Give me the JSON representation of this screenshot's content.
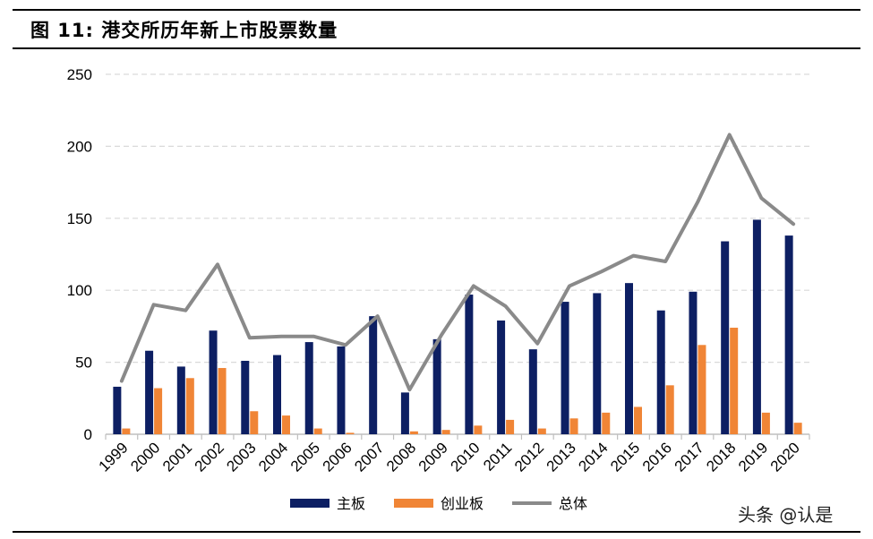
{
  "header": {
    "title": "图 11:  港交所历年新上市股票数量"
  },
  "watermark": "头条 @认是",
  "colors": {
    "main_board": "#0d1f63",
    "gem": "#f08536",
    "total": "#8a8a8a",
    "grid": "#d9d9d9"
  },
  "chart_data": {
    "type": "bar",
    "title": "图 11:  港交所历年新上市股票数量",
    "categories": [
      "1999",
      "2000",
      "2001",
      "2002",
      "2003",
      "2004",
      "2005",
      "2006",
      "2007",
      "2008",
      "2009",
      "2010",
      "2011",
      "2012",
      "2013",
      "2014",
      "2015",
      "2016",
      "2017",
      "2018",
      "2019",
      "2020"
    ],
    "ylim": [
      0,
      250
    ],
    "yticks": [
      0,
      50,
      100,
      150,
      200,
      250
    ],
    "grid": true,
    "legend_position": "bottom",
    "series": [
      {
        "name": "主板",
        "type": "bar",
        "color": "#0d1f63",
        "values": [
          33,
          58,
          47,
          72,
          51,
          55,
          64,
          61,
          82,
          29,
          66,
          97,
          79,
          59,
          92,
          98,
          105,
          86,
          99,
          134,
          149,
          138
        ]
      },
      {
        "name": "创业板",
        "type": "bar",
        "color": "#f08536",
        "values": [
          4,
          32,
          39,
          46,
          16,
          13,
          4,
          1,
          0,
          2,
          3,
          6,
          10,
          4,
          11,
          15,
          19,
          34,
          62,
          74,
          15,
          8
        ]
      },
      {
        "name": "总体",
        "type": "line",
        "color": "#8a8a8a",
        "values": [
          37,
          90,
          86,
          118,
          67,
          68,
          68,
          62,
          82,
          31,
          69,
          103,
          89,
          63,
          103,
          113,
          124,
          120,
          161,
          208,
          164,
          146
        ]
      }
    ]
  }
}
